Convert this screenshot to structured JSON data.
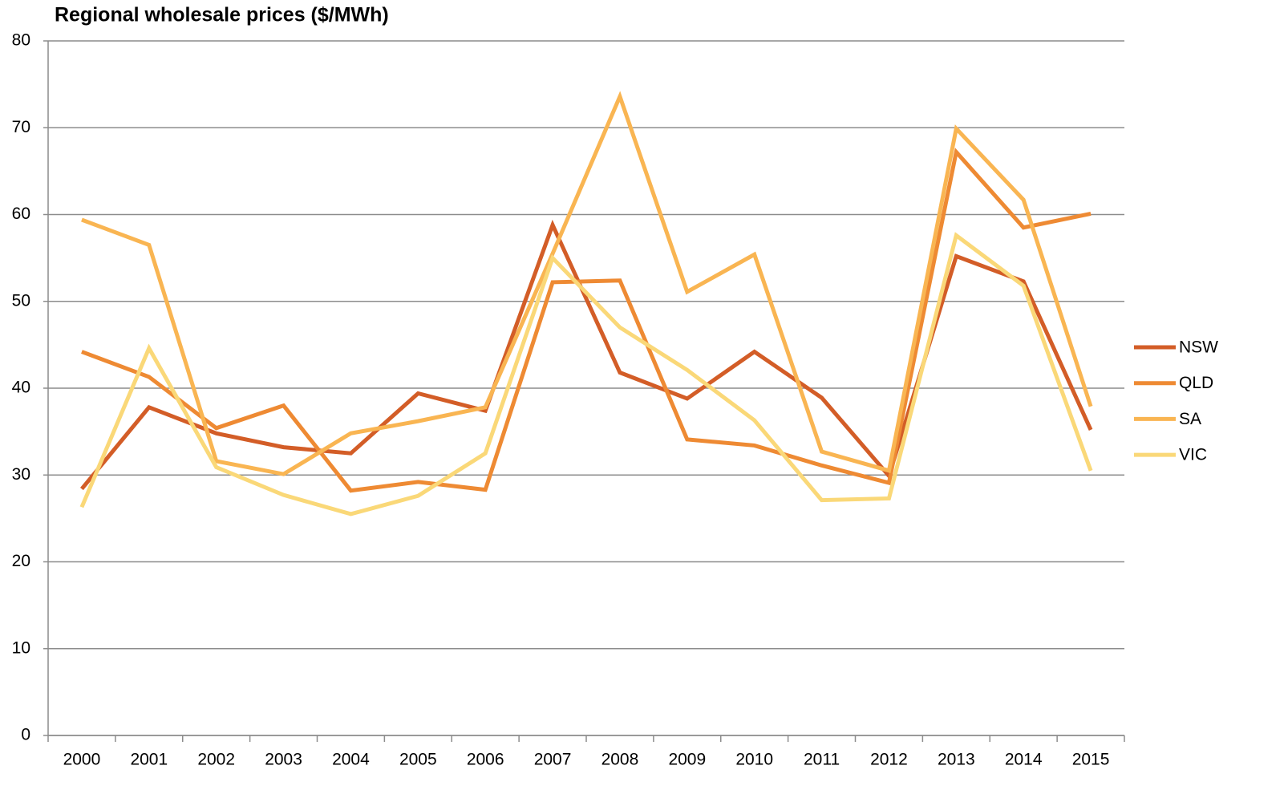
{
  "chart_data": {
    "type": "line",
    "title": "Regional wholesale prices ($/MWh)",
    "categories": [
      "2000",
      "2001",
      "2002",
      "2003",
      "2004",
      "2005",
      "2006",
      "2007",
      "2008",
      "2009",
      "2010",
      "2011",
      "2012",
      "2013",
      "2014",
      "2015"
    ],
    "series": [
      {
        "name": "NSW",
        "color": "#d35d27",
        "values": [
          28.4,
          37.8,
          34.8,
          33.2,
          32.5,
          39.4,
          37.4,
          58.8,
          41.8,
          38.8,
          44.2,
          38.9,
          29.9,
          55.2,
          52.3,
          35.2
        ]
      },
      {
        "name": "QLD",
        "color": "#ee8a33",
        "values": [
          44.2,
          41.3,
          35.4,
          38.0,
          28.2,
          29.2,
          28.3,
          52.2,
          52.4,
          34.1,
          33.4,
          31.1,
          29.1,
          67.2,
          58.5,
          60.1
        ]
      },
      {
        "name": "SA",
        "color": "#f9b552",
        "values": [
          59.4,
          56.5,
          31.6,
          30.1,
          34.8,
          36.2,
          37.8,
          55.5,
          73.6,
          51.1,
          55.4,
          32.7,
          30.5,
          69.9,
          61.7,
          37.9
        ]
      },
      {
        "name": "VIC",
        "color": "#fad878",
        "values": [
          26.3,
          44.6,
          30.9,
          27.7,
          25.5,
          27.6,
          32.5,
          55.0,
          47.0,
          42.1,
          36.3,
          27.1,
          27.3,
          57.6,
          51.8,
          30.5
        ]
      }
    ],
    "ylim": [
      0,
      80
    ],
    "yticks": [
      0,
      10,
      20,
      30,
      40,
      50,
      60,
      70,
      80
    ],
    "grid": true,
    "legend": "right"
  }
}
